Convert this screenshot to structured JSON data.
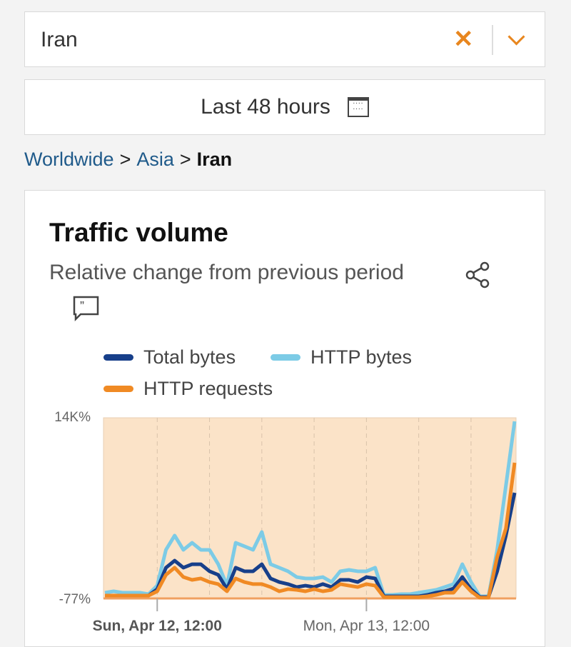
{
  "location_select": {
    "value": "Iran",
    "clear_icon": "x-icon",
    "dropdown_icon": "chevron-down-icon"
  },
  "date_range": {
    "label": "Last 48 hours",
    "icon": "calendar-icon"
  },
  "breadcrumb": [
    "Worldwide",
    "Asia",
    "Iran"
  ],
  "card": {
    "title": "Traffic volume",
    "subtitle": "Relative change from previous period",
    "share_icon": "share-icon",
    "comment_icon": "quote-comment-icon"
  },
  "colors": {
    "accent": "#e8861e",
    "link": "#1f5a8a"
  },
  "chart_data": {
    "type": "line",
    "x_start": "Apr 12 06:00",
    "x_step_hours": 1,
    "y_unit": "%",
    "ylim": [
      -77,
      14000
    ],
    "y_ticks": [
      "14K%",
      "-77%"
    ],
    "x_ticks": [
      "Sun, Apr 12, 12:00",
      "Mon, Apr 13, 12:00"
    ],
    "grid": "vertical dashed, every 6 hours",
    "legend_position": "top",
    "series": [
      {
        "name": "Total bytes",
        "color": "#173f8a",
        "values": [
          146,
          146,
          146,
          146,
          146,
          146,
          646,
          2320,
          2870,
          2320,
          2590,
          2590,
          2040,
          1760,
          650,
          2320,
          2040,
          2040,
          2590,
          1480,
          1200,
          1040,
          810,
          920,
          810,
          1040,
          810,
          1370,
          1370,
          1200,
          1590,
          1480,
          90,
          90,
          90,
          90,
          90,
          200,
          370,
          480,
          700,
          1590,
          650,
          30,
          30,
          2040,
          4820,
          8160
        ]
      },
      {
        "name": "HTTP bytes",
        "color": "#7ccbe6",
        "values": [
          368,
          479,
          368,
          368,
          368,
          257,
          924,
          3710,
          4820,
          3710,
          4260,
          3710,
          3710,
          2590,
          924,
          4260,
          3990,
          3710,
          5100,
          2590,
          2320,
          2040,
          1590,
          1480,
          1480,
          1590,
          1200,
          2040,
          2150,
          2040,
          2040,
          2320,
          200,
          200,
          260,
          260,
          370,
          480,
          590,
          810,
          1040,
          2590,
          1200,
          90,
          90,
          3710,
          8710,
          13720
        ]
      },
      {
        "name": "HTTP requests",
        "color": "#f08a24",
        "values": [
          146,
          146,
          146,
          146,
          146,
          146,
          480,
          1760,
          2320,
          1590,
          1370,
          1480,
          1200,
          1040,
          480,
          1480,
          1200,
          1040,
          1040,
          810,
          480,
          650,
          590,
          480,
          650,
          480,
          590,
          1040,
          920,
          810,
          1040,
          920,
          30,
          30,
          30,
          30,
          30,
          90,
          200,
          370,
          370,
          1200,
          480,
          -20,
          -20,
          3150,
          5380,
          10500
        ]
      }
    ]
  }
}
